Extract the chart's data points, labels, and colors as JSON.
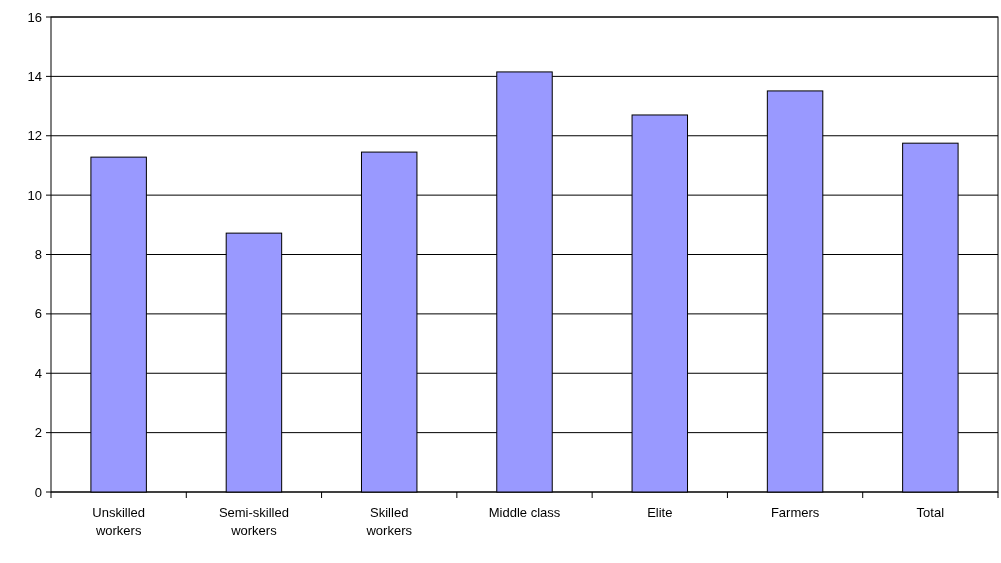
{
  "chart_data": {
    "type": "bar",
    "categories": [
      "Unskilled workers",
      "Semi-skilled workers",
      "Skilled workers",
      "Middle class",
      "Elite",
      "Farmers",
      "Total"
    ],
    "values": [
      11.28,
      8.72,
      11.45,
      14.15,
      12.7,
      13.51,
      11.75
    ],
    "color": "#9999ff",
    "ylim": [
      0,
      16
    ],
    "yticks": [
      0,
      2,
      4,
      6,
      8,
      10,
      12,
      14,
      16
    ],
    "grid": "y"
  }
}
